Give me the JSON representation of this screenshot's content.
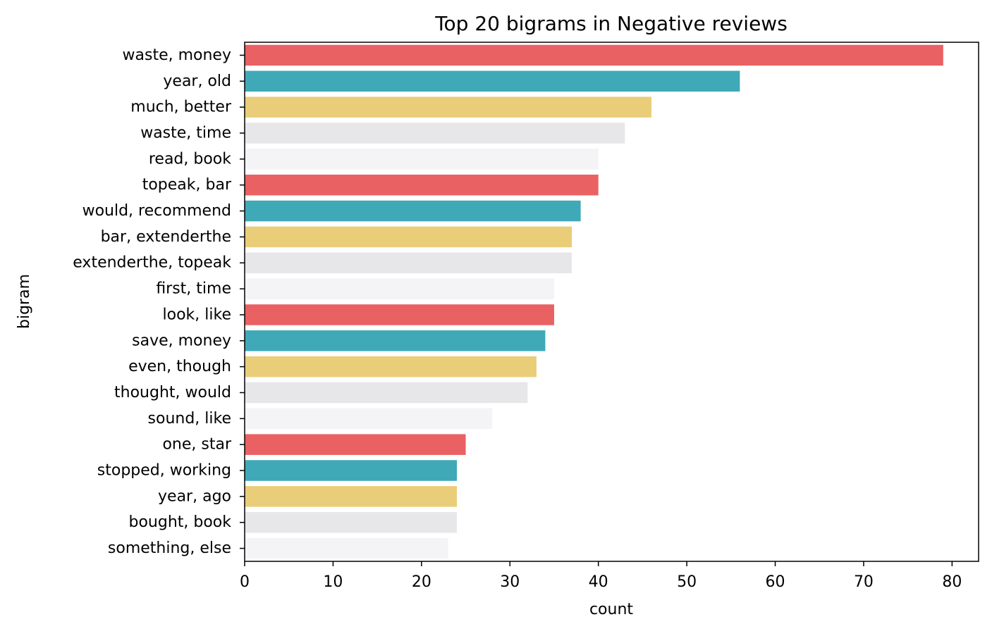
{
  "chart_data": {
    "type": "bar",
    "orientation": "horizontal",
    "title": "Top 20 bigrams in Negative reviews",
    "xlabel": "count",
    "ylabel": "bigram",
    "categories": [
      "waste, money",
      "year, old",
      "much, better",
      "waste, time",
      "read, book",
      "topeak, bar",
      "would, recommend",
      "bar, extenderthe",
      "extenderthe, topeak",
      "first, time",
      "look, like",
      "save, money",
      "even, though",
      "thought, would",
      "sound, like",
      "one, star",
      "stopped, working",
      "year, ago",
      "bought, book",
      "something, else"
    ],
    "values": [
      79,
      56,
      46,
      43,
      40,
      40,
      38,
      37,
      37,
      35,
      35,
      34,
      33,
      32,
      28,
      25,
      24,
      24,
      24,
      23
    ],
    "xlim": [
      0,
      83
    ],
    "xticks": [
      0,
      10,
      20,
      30,
      40,
      50,
      60,
      70,
      80
    ],
    "palette": [
      "#e96163",
      "#3fa9b7",
      "#e9cd78",
      "#e7e7ea",
      "#f4f4f6"
    ],
    "grid": false,
    "legend": "none"
  }
}
